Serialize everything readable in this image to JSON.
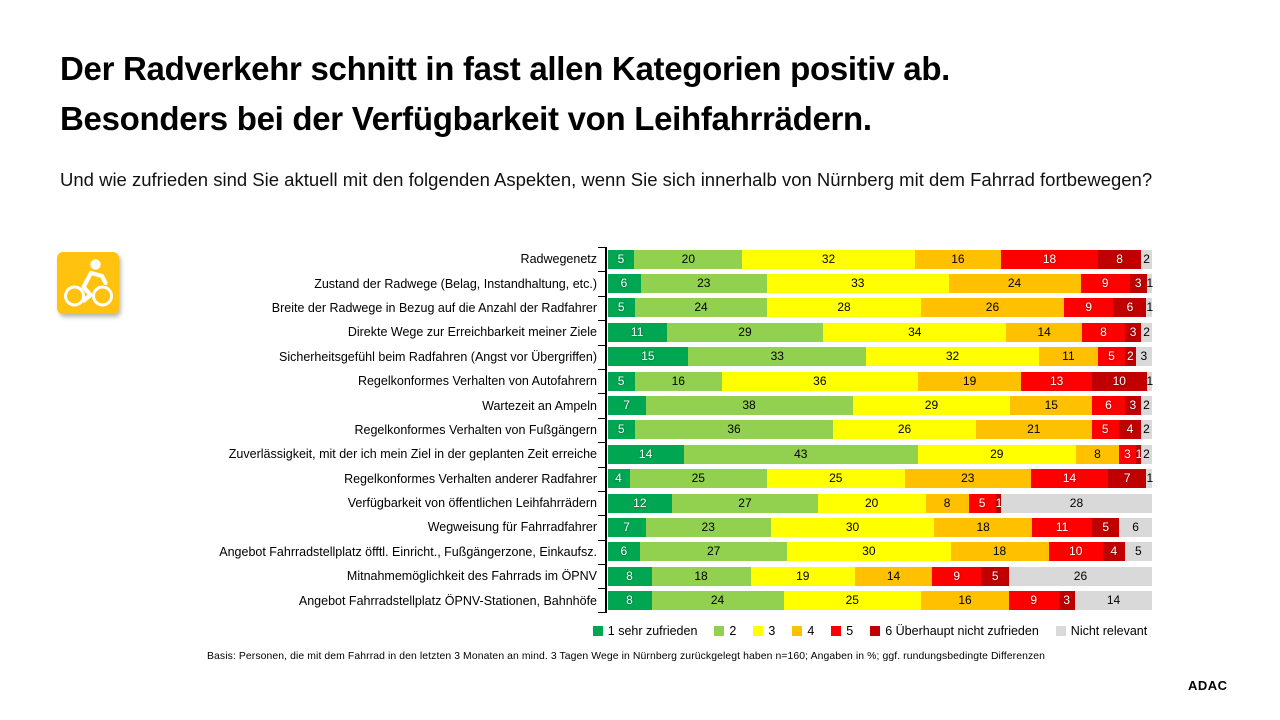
{
  "page": {
    "title_line1": "Der Radverkehr schnitt in fast allen Kategorien positiv ab.",
    "title_line2": "Besonders bei der Verfügbarkeit von Leihfahrrädern.",
    "subtitle": "Und wie zufrieden sind Sie aktuell mit den folgenden Aspekten, wenn Sie sich innerhalb von Nürnberg mit dem Fahrrad fortbewegen?",
    "footnote": "Basis: Personen, die mit dem Fahrrad in den letzten 3 Monaten an mind. 3 Tagen Wege in Nürnberg zurückgelegt haben n=160; Angaben in %; ggf. rundungsbedingte Differenzen",
    "brand": "ADAC",
    "icon": "bicycle-icon",
    "icon_color": "#FFC20E"
  },
  "chart_data": {
    "type": "bar",
    "orientation": "horizontal",
    "stacked": true,
    "unit": "%",
    "legend_position": "bottom",
    "grid": false,
    "xlim": [
      0,
      100
    ],
    "categories": [
      "Radwegenetz",
      "Zustand der Radwege (Belag, Instandhaltung, etc.)",
      "Breite der Radwege in Bezug auf die Anzahl der Radfahrer",
      "Direkte Wege zur Erreichbarkeit meiner Ziele",
      "Sicherheitsgefühl beim Radfahren (Angst vor Übergriffen)",
      "Regelkonformes Verhalten von Autofahrern",
      "Wartezeit an Ampeln",
      "Regelkonformes Verhalten von Fußgängern",
      "Zuverlässigkeit, mit der ich mein Ziel in der geplanten Zeit erreiche",
      "Regelkonformes Verhalten anderer Radfahrer",
      "Verfügbarkeit von öffentlichen Leihfahrrädern",
      "Wegweisung für Fahrradfahrer",
      "Angebot Fahrradstellplatz öfftl. Einricht., Fußgängerzone, Einkaufsz.",
      "Mitnahmemöglichkeit des Fahrrads im ÖPNV",
      "Angebot Fahrradstellplatz ÖPNV-Stationen, Bahnhöfe"
    ],
    "series": [
      {
        "name": "1 sehr zufrieden",
        "color": "#00A651",
        "label_color": "white",
        "values": [
          5,
          6,
          5,
          11,
          15,
          5,
          7,
          5,
          14,
          4,
          12,
          7,
          6,
          8,
          8
        ]
      },
      {
        "name": "2",
        "color": "#92D050",
        "label_color": "black",
        "values": [
          20,
          23,
          24,
          29,
          33,
          16,
          38,
          36,
          43,
          25,
          27,
          23,
          27,
          18,
          24
        ]
      },
      {
        "name": "3",
        "color": "#FFFF00",
        "label_color": "black",
        "values": [
          32,
          33,
          28,
          34,
          32,
          36,
          29,
          26,
          29,
          25,
          20,
          30,
          30,
          19,
          25
        ]
      },
      {
        "name": "4",
        "color": "#FFC000",
        "label_color": "black",
        "values": [
          16,
          24,
          26,
          14,
          11,
          19,
          15,
          21,
          8,
          23,
          8,
          18,
          18,
          14,
          16
        ]
      },
      {
        "name": "5",
        "color": "#FF0000",
        "label_color": "white",
        "values": [
          18,
          9,
          9,
          8,
          5,
          13,
          6,
          5,
          3,
          14,
          5,
          11,
          10,
          9,
          9
        ]
      },
      {
        "name": "6 Überhaupt nicht zufrieden",
        "color": "#C00000",
        "label_color": "white",
        "values": [
          8,
          3,
          6,
          3,
          2,
          10,
          3,
          4,
          1,
          7,
          1,
          5,
          4,
          5,
          3
        ]
      },
      {
        "name": "Nicht relevant",
        "color": "#D9D9D9",
        "label_color": "black",
        "values": [
          2,
          1,
          1,
          2,
          3,
          1,
          2,
          2,
          2,
          1,
          28,
          6,
          5,
          26,
          14
        ]
      }
    ]
  }
}
